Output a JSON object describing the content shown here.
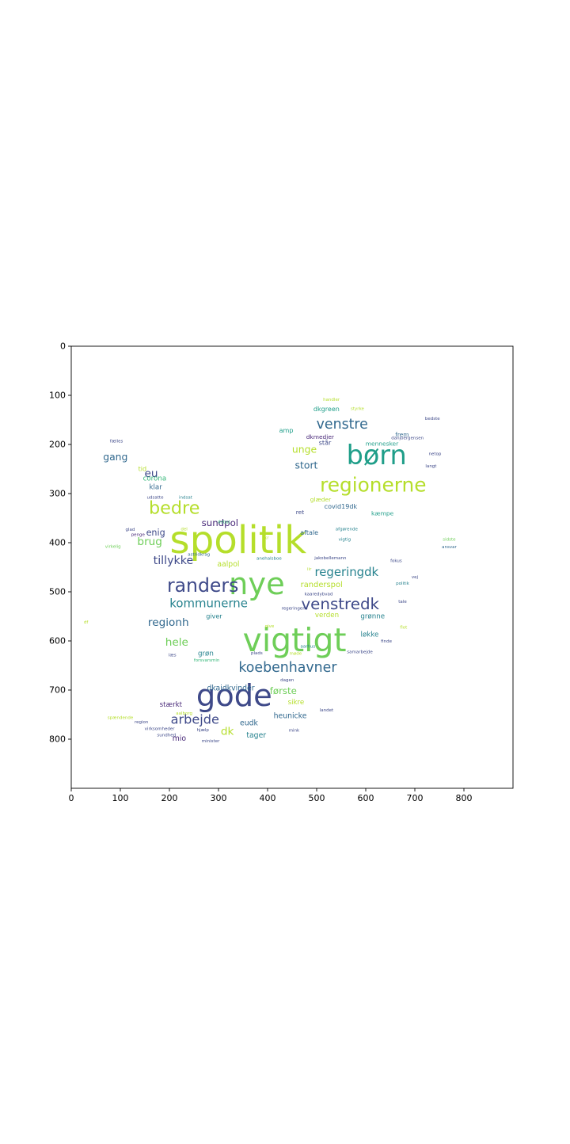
{
  "chart_data": {
    "type": "wordcloud",
    "x_ticks": [
      "0",
      "100",
      "200",
      "300",
      "400",
      "500",
      "600",
      "700",
      "800"
    ],
    "y_ticks": [
      "0",
      "100",
      "200",
      "300",
      "400",
      "500",
      "600",
      "700",
      "800"
    ],
    "xlim": [
      0,
      900
    ],
    "ylim": [
      900,
      0
    ],
    "palette": [
      "#440154",
      "#482878",
      "#3e4989",
      "#31688e",
      "#26828e",
      "#1f9e89",
      "#35b779",
      "#6ece58",
      "#b5de2b",
      "#fde725"
    ],
    "words": [
      {
        "text": "spolitik",
        "x": 340,
        "y": 395,
        "size": 78,
        "color": "#b5de2b"
      },
      {
        "text": "nye",
        "x": 378,
        "y": 485,
        "size": 62,
        "color": "#6ece58"
      },
      {
        "text": "vigtigt",
        "x": 455,
        "y": 598,
        "size": 66,
        "color": "#6ece58"
      },
      {
        "text": "gode",
        "x": 332,
        "y": 712,
        "size": 62,
        "color": "#3e4989"
      },
      {
        "text": "børn",
        "x": 622,
        "y": 222,
        "size": 54,
        "color": "#1f9e89"
      },
      {
        "text": "regionerne",
        "x": 615,
        "y": 282,
        "size": 40,
        "color": "#b5de2b"
      },
      {
        "text": "bedre",
        "x": 210,
        "y": 330,
        "size": 36,
        "color": "#b5de2b"
      },
      {
        "text": "randers",
        "x": 268,
        "y": 487,
        "size": 38,
        "color": "#3e4989"
      },
      {
        "text": "venstredk",
        "x": 548,
        "y": 525,
        "size": 32,
        "color": "#3e4989"
      },
      {
        "text": "koebenhavner",
        "x": 441,
        "y": 655,
        "size": 28,
        "color": "#31688e"
      },
      {
        "text": "kommunerne",
        "x": 280,
        "y": 523,
        "size": 24,
        "color": "#26828e"
      },
      {
        "text": "venstre",
        "x": 552,
        "y": 160,
        "size": 28,
        "color": "#31688e"
      },
      {
        "text": "regeringdk",
        "x": 561,
        "y": 460,
        "size": 24,
        "color": "#26828e"
      },
      {
        "text": "tillykke",
        "x": 208,
        "y": 437,
        "size": 23,
        "color": "#3e4989"
      },
      {
        "text": "arbejde",
        "x": 252,
        "y": 760,
        "size": 26,
        "color": "#3e4989"
      },
      {
        "text": "regionh",
        "x": 198,
        "y": 563,
        "size": 22,
        "color": "#31688e"
      },
      {
        "text": "hele",
        "x": 215,
        "y": 603,
        "size": 22,
        "color": "#6ece58"
      },
      {
        "text": "brug",
        "x": 160,
        "y": 398,
        "size": 22,
        "color": "#6ece58"
      },
      {
        "text": "stort",
        "x": 479,
        "y": 242,
        "size": 20,
        "color": "#31688e"
      },
      {
        "text": "unge",
        "x": 475,
        "y": 210,
        "size": 20,
        "color": "#b5de2b"
      },
      {
        "text": "sundpol",
        "x": 303,
        "y": 360,
        "size": 19,
        "color": "#482878"
      },
      {
        "text": "første",
        "x": 432,
        "y": 702,
        "size": 19,
        "color": "#6ece58"
      },
      {
        "text": "dk",
        "x": 318,
        "y": 785,
        "size": 22,
        "color": "#b5de2b"
      },
      {
        "text": "eu",
        "x": 163,
        "y": 260,
        "size": 22,
        "color": "#3e4989"
      },
      {
        "text": "gang",
        "x": 90,
        "y": 225,
        "size": 20,
        "color": "#31688e"
      },
      {
        "text": "enig",
        "x": 172,
        "y": 380,
        "size": 18,
        "color": "#3e4989"
      },
      {
        "text": "aalpol",
        "x": 320,
        "y": 444,
        "size": 15,
        "color": "#b5de2b"
      },
      {
        "text": "randerspol",
        "x": 510,
        "y": 486,
        "size": 16,
        "color": "#b5de2b"
      },
      {
        "text": "verden",
        "x": 521,
        "y": 548,
        "size": 14,
        "color": "#b5de2b"
      },
      {
        "text": "grønne",
        "x": 614,
        "y": 551,
        "size": 14,
        "color": "#26828e"
      },
      {
        "text": "løkke",
        "x": 608,
        "y": 588,
        "size": 14,
        "color": "#26828e"
      },
      {
        "text": "dkaidkvinder",
        "x": 325,
        "y": 697,
        "size": 15,
        "color": "#31688e"
      },
      {
        "text": "sikre",
        "x": 458,
        "y": 726,
        "size": 14,
        "color": "#b5de2b"
      },
      {
        "text": "heunicke",
        "x": 446,
        "y": 753,
        "size": 15,
        "color": "#31688e"
      },
      {
        "text": "eudk",
        "x": 362,
        "y": 768,
        "size": 15,
        "color": "#31688e"
      },
      {
        "text": "tager",
        "x": 377,
        "y": 793,
        "size": 15,
        "color": "#26828e"
      },
      {
        "text": "mio",
        "x": 220,
        "y": 799,
        "size": 15,
        "color": "#482878"
      },
      {
        "text": "stærkt",
        "x": 203,
        "y": 731,
        "size": 14,
        "color": "#482878"
      },
      {
        "text": "grøn",
        "x": 274,
        "y": 627,
        "size": 14,
        "color": "#26828e"
      },
      {
        "text": "giver",
        "x": 291,
        "y": 550,
        "size": 13,
        "color": "#26828e"
      },
      {
        "text": "corona",
        "x": 170,
        "y": 270,
        "size": 14,
        "color": "#35b779"
      },
      {
        "text": "tid",
        "x": 145,
        "y": 250,
        "size": 13,
        "color": "#b5de2b"
      },
      {
        "text": "klar",
        "x": 172,
        "y": 288,
        "size": 14,
        "color": "#31688e"
      },
      {
        "text": "dkgreen",
        "x": 520,
        "y": 128,
        "size": 13,
        "color": "#1f9e89"
      },
      {
        "text": "dkmedier",
        "x": 507,
        "y": 185,
        "size": 12,
        "color": "#482878"
      },
      {
        "text": "amp",
        "x": 438,
        "y": 172,
        "size": 13,
        "color": "#1f9e89"
      },
      {
        "text": "står",
        "x": 517,
        "y": 197,
        "size": 13,
        "color": "#3e4989"
      },
      {
        "text": "mennesker",
        "x": 633,
        "y": 198,
        "size": 12,
        "color": "#1f9e89"
      },
      {
        "text": "frem",
        "x": 674,
        "y": 180,
        "size": 12,
        "color": "#31688e"
      },
      {
        "text": "covid19dk",
        "x": 549,
        "y": 327,
        "size": 13,
        "color": "#31688e"
      },
      {
        "text": "kæmpe",
        "x": 634,
        "y": 340,
        "size": 12,
        "color": "#1f9e89"
      },
      {
        "text": "glæder",
        "x": 508,
        "y": 312,
        "size": 12,
        "color": "#b5de2b"
      },
      {
        "text": "aftale",
        "x": 485,
        "y": 380,
        "size": 13,
        "color": "#31688e"
      },
      {
        "text": "ret",
        "x": 466,
        "y": 338,
        "size": 12,
        "color": "#3e4989"
      }
    ],
    "small_words": [
      {
        "text": "handler",
        "x": 530,
        "y": 110,
        "color": "#b5de2b"
      },
      {
        "text": "styrke",
        "x": 583,
        "y": 128,
        "color": "#b5de2b"
      },
      {
        "text": "bedste",
        "x": 736,
        "y": 148,
        "color": "#3e4989"
      },
      {
        "text": "netop",
        "x": 741,
        "y": 220,
        "color": "#3e4989"
      },
      {
        "text": "langt",
        "x": 733,
        "y": 245,
        "color": "#3e4989"
      },
      {
        "text": "fælles",
        "x": 92,
        "y": 194,
        "color": "#3e4989"
      },
      {
        "text": "udsatte",
        "x": 171,
        "y": 309,
        "color": "#3e4989"
      },
      {
        "text": "indsat",
        "x": 233,
        "y": 309,
        "color": "#26828e"
      },
      {
        "text": "debat",
        "x": 311,
        "y": 359,
        "color": "#35b779"
      },
      {
        "text": "glad",
        "x": 120,
        "y": 374,
        "color": "#3e4989"
      },
      {
        "text": "penge",
        "x": 136,
        "y": 385,
        "color": "#482878"
      },
      {
        "text": "virkelig",
        "x": 85,
        "y": 409,
        "color": "#6ece58"
      },
      {
        "text": "astridkrag",
        "x": 260,
        "y": 425,
        "color": "#31688e"
      },
      {
        "text": "anehalsboe",
        "x": 403,
        "y": 433,
        "color": "#26828e"
      },
      {
        "text": "jakobellemann",
        "x": 528,
        "y": 432,
        "color": "#3e4989"
      },
      {
        "text": "fokus",
        "x": 662,
        "y": 438,
        "color": "#3e4989"
      },
      {
        "text": "vej",
        "x": 700,
        "y": 471,
        "color": "#3e4989"
      },
      {
        "text": "politik",
        "x": 675,
        "y": 484,
        "color": "#26828e"
      },
      {
        "text": "vigtig",
        "x": 557,
        "y": 394,
        "color": "#26828e"
      },
      {
        "text": "afgørende",
        "x": 561,
        "y": 373,
        "color": "#26828e"
      },
      {
        "text": "sidste",
        "x": 770,
        "y": 394,
        "color": "#6ece58"
      },
      {
        "text": "ansvar",
        "x": 770,
        "y": 410,
        "color": "#31688e"
      },
      {
        "text": "danjoergensen",
        "x": 685,
        "y": 188,
        "color": "#3e4989"
      },
      {
        "text": "tale",
        "x": 675,
        "y": 521,
        "color": "#3e4989"
      },
      {
        "text": "flot",
        "x": 677,
        "y": 573,
        "color": "#b5de2b"
      },
      {
        "text": "finde",
        "x": 642,
        "y": 602,
        "color": "#3e4989"
      },
      {
        "text": "samarbejde",
        "x": 588,
        "y": 623,
        "color": "#3e4989"
      },
      {
        "text": "aarhus",
        "x": 482,
        "y": 612,
        "color": "#26828e"
      },
      {
        "text": "møde",
        "x": 457,
        "y": 627,
        "color": "#b5de2b"
      },
      {
        "text": "plads",
        "x": 378,
        "y": 626,
        "color": "#3e4989"
      },
      {
        "text": "forsvarsmin",
        "x": 276,
        "y": 640,
        "color": "#35b779"
      },
      {
        "text": "læs",
        "x": 206,
        "y": 630,
        "color": "#3e4989"
      },
      {
        "text": "give",
        "x": 404,
        "y": 571,
        "color": "#b5de2b"
      },
      {
        "text": "dagen",
        "x": 440,
        "y": 681,
        "color": "#3e4989"
      },
      {
        "text": "landet",
        "x": 520,
        "y": 742,
        "color": "#3e4989"
      },
      {
        "text": "aalborg",
        "x": 230,
        "y": 748,
        "color": "#b5de2b"
      },
      {
        "text": "spændende",
        "x": 100,
        "y": 757,
        "color": "#b5de2b"
      },
      {
        "text": "region",
        "x": 143,
        "y": 766,
        "color": "#3e4989"
      },
      {
        "text": "virksomheder",
        "x": 180,
        "y": 780,
        "color": "#3e4989"
      },
      {
        "text": "sundhed",
        "x": 194,
        "y": 793,
        "color": "#3e4989"
      },
      {
        "text": "hjælp",
        "x": 268,
        "y": 782,
        "color": "#3e4989"
      },
      {
        "text": "minister",
        "x": 284,
        "y": 805,
        "color": "#3e4989"
      },
      {
        "text": "mink",
        "x": 454,
        "y": 783,
        "color": "#3e4989"
      },
      {
        "text": "regeringens",
        "x": 455,
        "y": 535,
        "color": "#3e4989"
      },
      {
        "text": "kaaredybvad",
        "x": 504,
        "y": 506,
        "color": "#3e4989"
      },
      {
        "text": "del",
        "x": 230,
        "y": 373,
        "color": "#b5de2b"
      },
      {
        "text": "kr",
        "x": 398,
        "y": 391,
        "color": "#b5de2b"
      },
      {
        "text": "iir",
        "x": 485,
        "y": 455,
        "color": "#b5de2b"
      },
      {
        "text": "df",
        "x": 30,
        "y": 563,
        "color": "#b5de2b"
      }
    ]
  }
}
